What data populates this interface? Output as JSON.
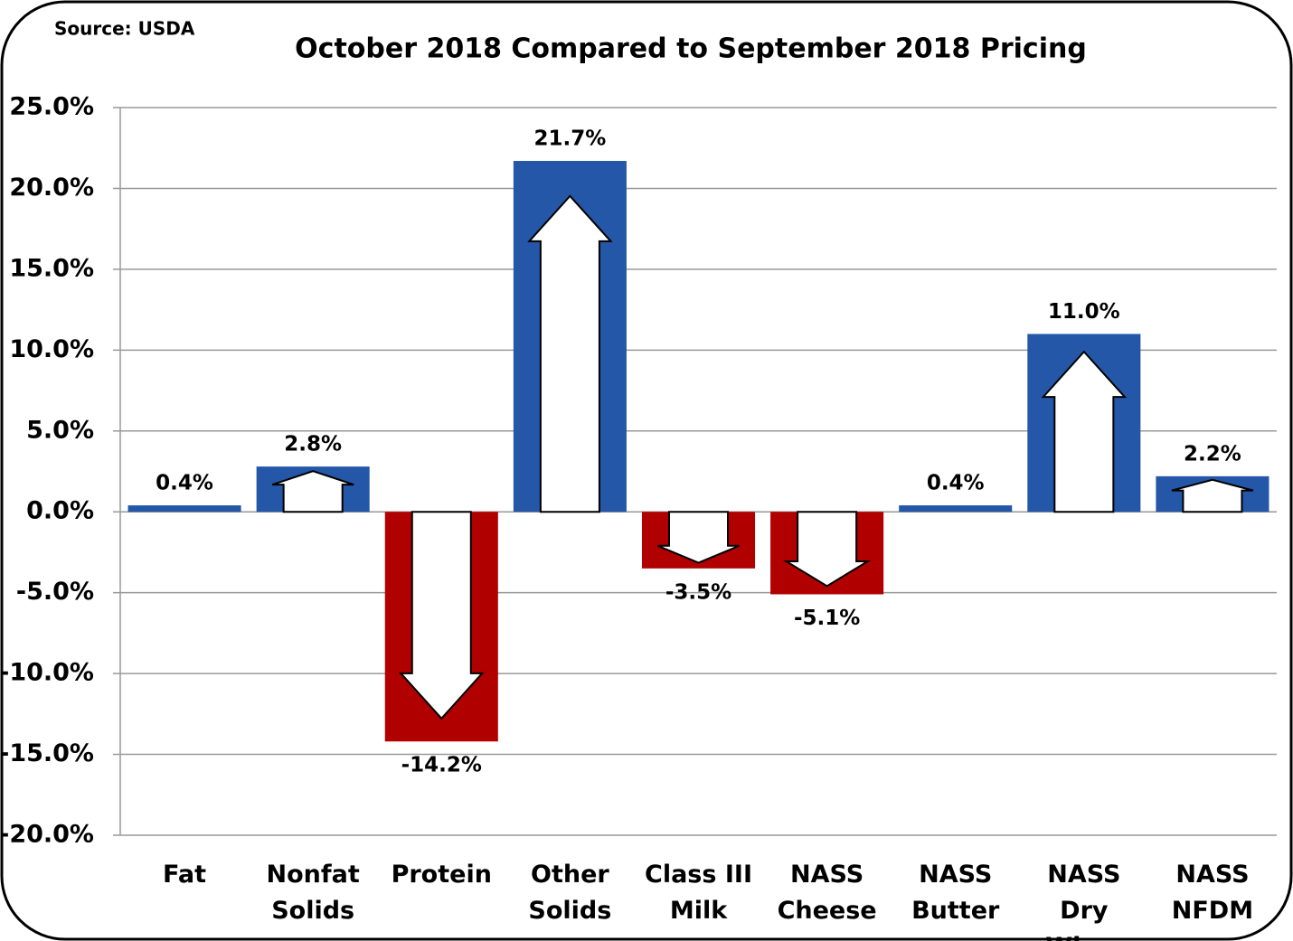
{
  "chart_data": {
    "type": "bar",
    "title": "October 2018 Compared to September 2018 Pricing",
    "source": "Source: USDA",
    "categories": [
      "Fat",
      "Nonfat Solids",
      "Protein",
      "Other Solids",
      "Class III Milk",
      "NASS Cheese",
      "NASS Butter",
      "NASS Dry Whey",
      "NASS NFDM"
    ],
    "values": [
      0.4,
      2.8,
      -14.2,
      21.7,
      -3.5,
      -5.1,
      0.4,
      11.0,
      2.2
    ],
    "value_labels": [
      "0.4%",
      "2.8%",
      "-14.2%",
      "21.7%",
      "-3.5%",
      "-5.1%",
      "0.4%",
      "11.0%",
      "2.2%"
    ],
    "colors": [
      "#2457a8",
      "#2457a8",
      "#b00000",
      "#2457a8",
      "#b00000",
      "#b00000",
      "#2457a8",
      "#2457a8",
      "#2457a8"
    ],
    "ylim": [
      -20,
      25
    ],
    "yticks": [
      {
        "value": -20,
        "label": "-20.0%"
      },
      {
        "value": -15,
        "label": "-15.0%"
      },
      {
        "value": -10,
        "label": "-10.0%"
      },
      {
        "value": -5,
        "label": "-5.0%"
      },
      {
        "value": 0,
        "label": "0.0%"
      },
      {
        "value": 5,
        "label": "5.0%"
      },
      {
        "value": 10,
        "label": "10.0%"
      },
      {
        "value": 15,
        "label": "15.0%"
      },
      {
        "value": 20,
        "label": "20.0%"
      },
      {
        "value": 25,
        "label": "25.0%"
      }
    ],
    "grid": true
  }
}
